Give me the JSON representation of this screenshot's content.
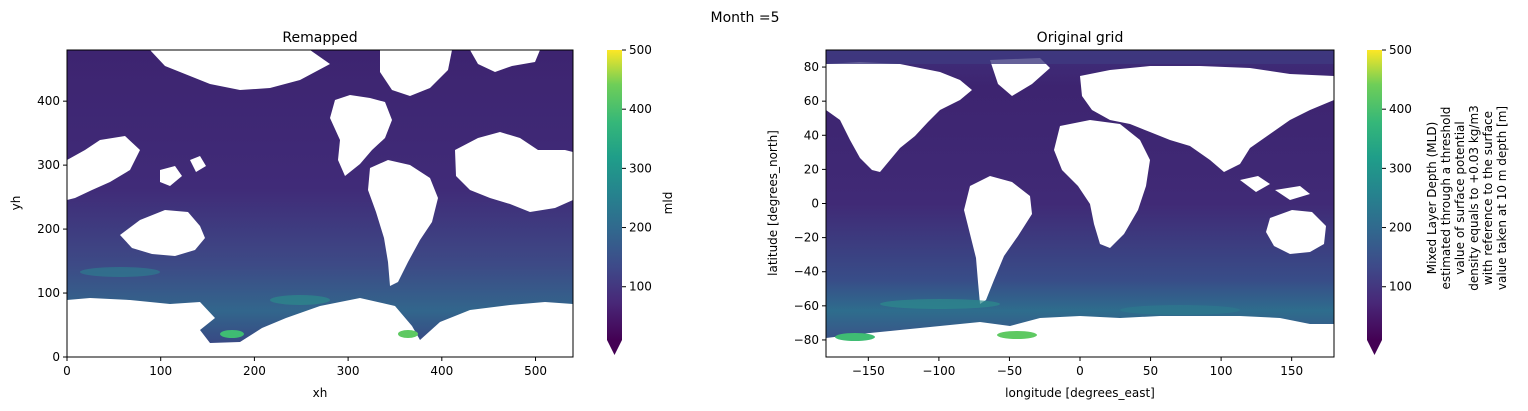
{
  "figure": {
    "suptitle": "Month =5"
  },
  "chart_data": [
    {
      "type": "heatmap",
      "title": "Remapped",
      "xlabel": "xh",
      "ylabel": "yh",
      "xlim": [
        0,
        540
      ],
      "ylim": [
        0,
        480
      ],
      "xticks": [
        0,
        100,
        200,
        300,
        400,
        500
      ],
      "yticks": [
        0,
        100,
        200,
        300,
        400
      ],
      "colorbar": {
        "label": "mld",
        "range": [
          10,
          500
        ],
        "ticks": [
          100,
          200,
          300,
          400,
          500
        ],
        "extend": "min",
        "colormap": "viridis"
      }
    },
    {
      "type": "heatmap",
      "title": "Original grid",
      "xlabel": "longitude [degrees_east]",
      "ylabel": "latitude [degrees_north]",
      "xlim": [
        -180,
        180
      ],
      "ylim": [
        -90,
        90
      ],
      "xticks": [
        -150,
        -100,
        -50,
        0,
        50,
        100,
        150
      ],
      "yticks": [
        -80,
        -60,
        -40,
        -20,
        0,
        20,
        40,
        60,
        80
      ],
      "colorbar": {
        "label_lines": [
          "Mixed Layer Depth (MLD)",
          "estimated through a threshold",
          "value of surface potential",
          "density equals to +0.03 kg/m3",
          "with reference to the surface",
          "value taken at 10 m depth [m]"
        ],
        "range": [
          10,
          500
        ],
        "ticks": [
          100,
          200,
          300,
          400,
          500
        ],
        "extend": "min",
        "colormap": "viridis"
      }
    }
  ],
  "colors": {
    "ocean_base": "#3b1f66",
    "ocean_mid": "#433a83",
    "southern_band": "#2f6c8e",
    "highlight": "#3fbc73",
    "land": "#ffffff"
  }
}
